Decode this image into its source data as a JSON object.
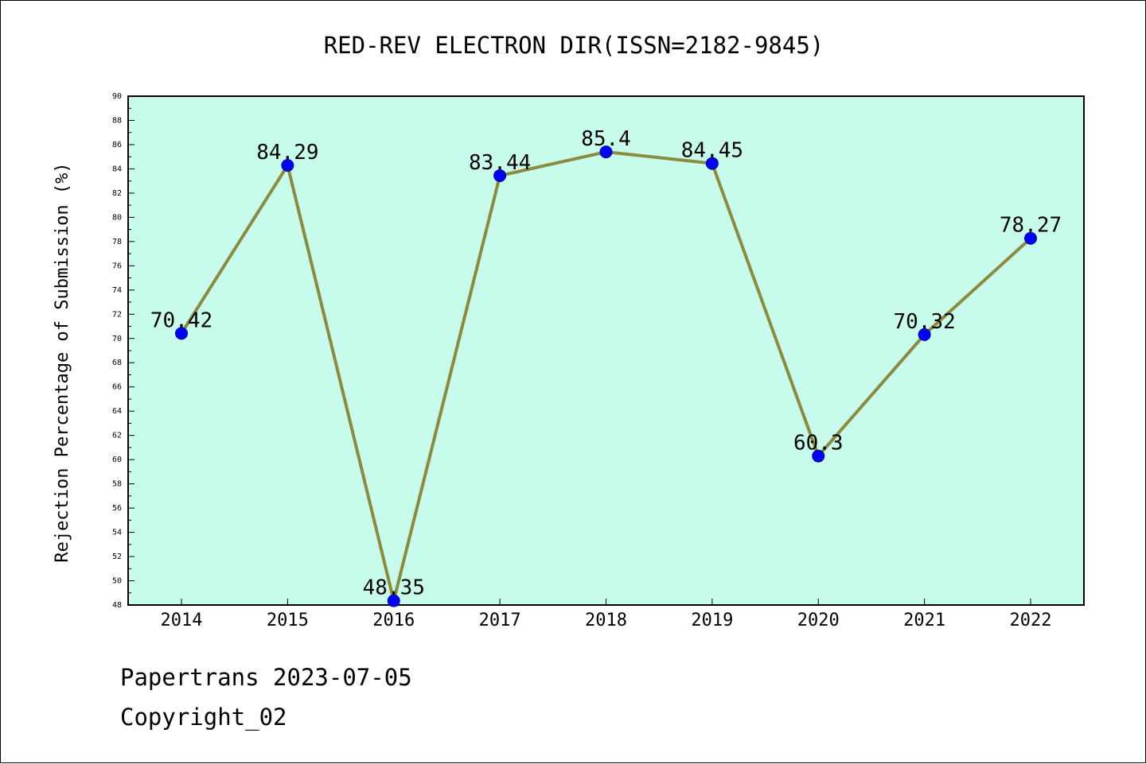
{
  "chart_data": {
    "type": "line",
    "title": "RED-REV ELECTRON DIR(ISSN=2182-9845)",
    "xlabel": "",
    "ylabel": "Rejection Percentage of Submission (%)",
    "categories": [
      "2014",
      "2015",
      "2016",
      "2017",
      "2018",
      "2019",
      "2020",
      "2021",
      "2022"
    ],
    "series": [
      {
        "values": [
          70.42,
          84.29,
          48.35,
          83.44,
          85.4,
          84.45,
          60.3,
          70.32,
          78.27
        ],
        "labels": [
          "70.42",
          "84.29",
          "48.35",
          "83.44",
          "85.4",
          "84.45",
          "60.3",
          "70.32",
          "78.27"
        ]
      }
    ],
    "ylim": [
      48,
      90
    ],
    "yticks": [
      "48",
      "50",
      "52",
      "54",
      "56",
      "58",
      "60",
      "62",
      "64",
      "66",
      "68",
      "70",
      "72",
      "74",
      "76",
      "78",
      "80",
      "82",
      "84",
      "86",
      "88",
      "90"
    ],
    "grid": false,
    "colors": {
      "plot_background": "#c7fcec",
      "line": "#8c8a3c",
      "marker": "#0000ff",
      "axis": "#000000"
    }
  },
  "footer": {
    "line1": "Papertrans 2023-07-05",
    "line2": "Copyright_02"
  }
}
